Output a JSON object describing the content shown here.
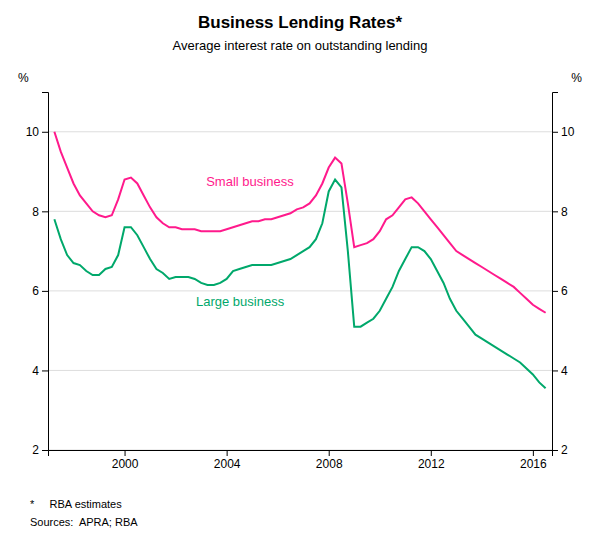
{
  "chart_data": {
    "type": "line",
    "title": "Business Lending Rates*",
    "subtitle": "Average interest rate on outstanding lending",
    "ylabel": "%",
    "y2label": "%",
    "xlim": [
      1997.0,
      2016.75
    ],
    "xticks": [
      2000,
      2004,
      2008,
      2012,
      2016
    ],
    "ylim": [
      2,
      11
    ],
    "yticks": [
      2,
      4,
      6,
      8,
      10
    ],
    "y2lim": [
      2,
      11
    ],
    "y2ticks": [
      2,
      4,
      6,
      8,
      10
    ],
    "grid": true,
    "x": [
      1997.25,
      1997.5,
      1997.75,
      1998.0,
      1998.25,
      1998.5,
      1998.75,
      1999.0,
      1999.25,
      1999.5,
      1999.75,
      2000.0,
      2000.25,
      2000.5,
      2000.75,
      2001.0,
      2001.25,
      2001.5,
      2001.75,
      2002.0,
      2002.25,
      2002.5,
      2002.75,
      2003.0,
      2003.25,
      2003.5,
      2003.75,
      2004.0,
      2004.25,
      2004.5,
      2004.75,
      2005.0,
      2005.25,
      2005.5,
      2005.75,
      2006.0,
      2006.25,
      2006.5,
      2006.75,
      2007.0,
      2007.25,
      2007.5,
      2007.75,
      2008.0,
      2008.25,
      2008.5,
      2008.75,
      2009.0,
      2009.25,
      2009.5,
      2009.75,
      2010.0,
      2010.25,
      2010.5,
      2010.75,
      2011.0,
      2011.25,
      2011.5,
      2011.75,
      2012.0,
      2012.25,
      2012.5,
      2012.75,
      2013.0,
      2013.25,
      2013.5,
      2013.75,
      2014.0,
      2014.25,
      2014.5,
      2014.75,
      2015.0,
      2015.25,
      2015.5,
      2015.75,
      2016.0,
      2016.25,
      2016.5
    ],
    "series": [
      {
        "color": "#FF1A8C",
        "values": [
          10.0,
          9.5,
          9.1,
          8.7,
          8.4,
          8.2,
          8.0,
          7.9,
          7.85,
          7.9,
          8.3,
          8.8,
          8.85,
          8.7,
          8.4,
          8.1,
          7.85,
          7.7,
          7.6,
          7.6,
          7.55,
          7.55,
          7.55,
          7.5,
          7.5,
          7.5,
          7.5,
          7.55,
          7.6,
          7.65,
          7.7,
          7.75,
          7.75,
          7.8,
          7.8,
          7.85,
          7.9,
          7.95,
          8.05,
          8.1,
          8.2,
          8.4,
          8.7,
          9.1,
          9.35,
          9.2,
          8.2,
          7.1,
          7.15,
          7.2,
          7.3,
          7.5,
          7.8,
          7.9,
          8.1,
          8.3,
          8.35,
          8.2,
          8.0,
          7.8,
          7.6,
          7.4,
          7.2,
          7.0,
          6.9,
          6.8,
          6.7,
          6.6,
          6.5,
          6.4,
          6.3,
          6.2,
          6.1,
          5.95,
          5.8,
          5.65,
          5.55,
          5.45
        ]
      },
      {
        "color": "#00A86B",
        "values": [
          7.8,
          7.3,
          6.9,
          6.7,
          6.65,
          6.5,
          6.4,
          6.4,
          6.55,
          6.6,
          6.9,
          7.6,
          7.6,
          7.4,
          7.1,
          6.8,
          6.55,
          6.45,
          6.3,
          6.35,
          6.35,
          6.35,
          6.3,
          6.2,
          6.15,
          6.15,
          6.2,
          6.3,
          6.5,
          6.55,
          6.6,
          6.65,
          6.65,
          6.65,
          6.65,
          6.7,
          6.75,
          6.8,
          6.9,
          7.0,
          7.1,
          7.3,
          7.7,
          8.5,
          8.8,
          8.6,
          7.0,
          5.1,
          5.1,
          5.2,
          5.3,
          5.5,
          5.8,
          6.1,
          6.5,
          6.8,
          7.1,
          7.1,
          7.0,
          6.8,
          6.5,
          6.2,
          5.8,
          5.5,
          5.3,
          5.1,
          4.9,
          4.8,
          4.7,
          4.6,
          4.5,
          4.4,
          4.3,
          4.2,
          4.05,
          3.9,
          3.7,
          3.55
        ]
      }
    ],
    "annotations": [
      {
        "text": "Small business",
        "x": 2003.2,
        "y": 8.55,
        "color": "#FF1A8C"
      },
      {
        "text": "Large business",
        "x": 2002.8,
        "y": 5.55,
        "color": "#00A86B"
      }
    ],
    "footnotes": [
      "*     RBA estimates",
      "Sources:  APRA; RBA"
    ]
  }
}
